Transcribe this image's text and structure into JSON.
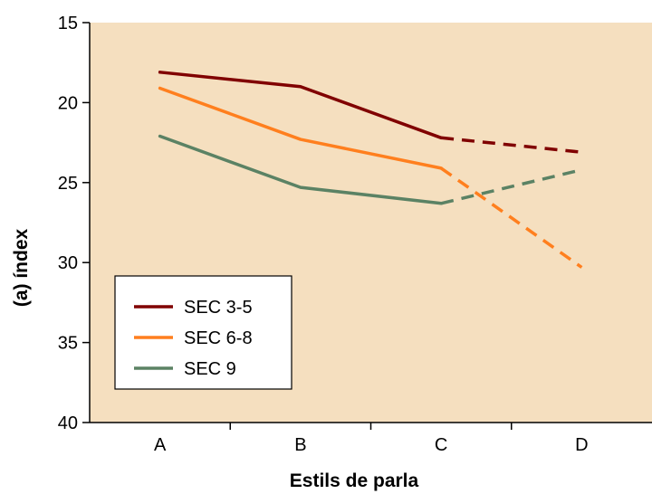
{
  "chart_data": {
    "type": "line",
    "title": "",
    "xlabel": "Estils de parla",
    "ylabel": "(a) índex",
    "categories": [
      "A",
      "B",
      "C",
      "D"
    ],
    "ylim": [
      15,
      40
    ],
    "y_inverted": true,
    "y_ticks": [
      15,
      20,
      25,
      30,
      35,
      40
    ],
    "grid": false,
    "background_color": "#f5dfbf",
    "legend_position": "bottom-left",
    "solid_segment_categories": [
      "A",
      "B",
      "C"
    ],
    "dashed_segment_categories": [
      "C",
      "D"
    ],
    "series": [
      {
        "name": "SEC 3-5",
        "color": "#800000",
        "values": [
          18.1,
          19.0,
          22.2,
          23.1
        ]
      },
      {
        "name": "SEC 6-8",
        "color": "#ff7f1e",
        "values": [
          19.1,
          22.3,
          24.1,
          30.3
        ]
      },
      {
        "name": "SEC 9",
        "color": "#5b8264",
        "values": [
          22.1,
          25.3,
          26.3,
          24.2
        ]
      }
    ]
  }
}
